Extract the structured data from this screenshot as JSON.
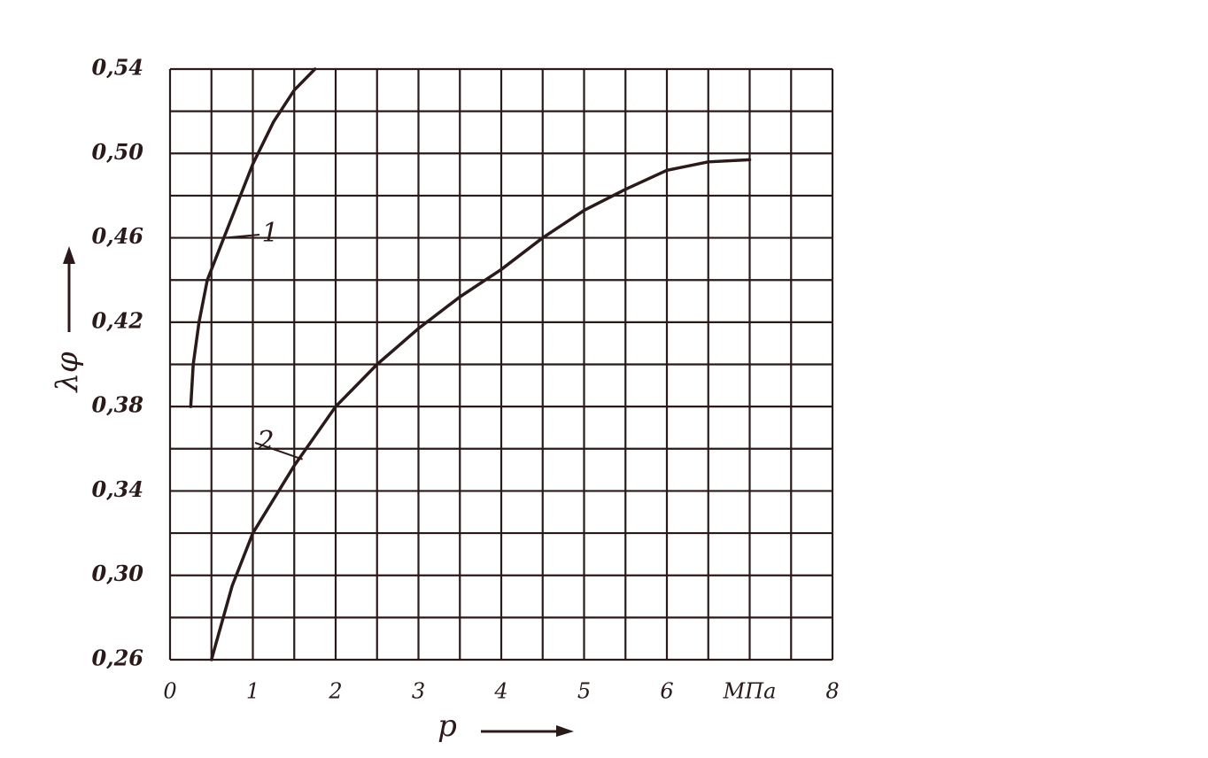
{
  "chart_data": {
    "type": "line",
    "x_label": "p",
    "y_label": "λφ",
    "xlim": [
      0,
      8
    ],
    "ylim": [
      0.26,
      0.54
    ],
    "xticks": [
      0,
      1,
      2,
      3,
      4,
      5,
      6,
      {
        "value": 7,
        "label": "МПа"
      },
      8
    ],
    "yticks": [
      {
        "value": 0.26,
        "label": "0,26"
      },
      {
        "value": 0.3,
        "label": "0,30"
      },
      {
        "value": 0.34,
        "label": "0,34"
      },
      {
        "value": 0.38,
        "label": "0,38"
      },
      {
        "value": 0.42,
        "label": "0,42"
      },
      {
        "value": 0.46,
        "label": "0,46"
      },
      {
        "value": 0.5,
        "label": "0,50"
      },
      {
        "value": 0.54,
        "label": "0,54"
      }
    ],
    "xgrid": [
      0,
      0.5,
      1,
      1.5,
      2,
      2.5,
      3,
      3.5,
      4,
      4.5,
      5,
      5.5,
      6,
      6.5,
      7,
      7.5,
      8
    ],
    "ygrid": [
      0.26,
      0.28,
      0.3,
      0.32,
      0.34,
      0.36,
      0.38,
      0.4,
      0.42,
      0.44,
      0.46,
      0.48,
      0.5,
      0.52,
      0.54
    ],
    "grid": true,
    "series": [
      {
        "name": "1",
        "color": "#2a1a1a",
        "x": [
          0.25,
          0.28,
          0.35,
          0.45,
          0.65,
          0.8,
          1.0,
          1.25,
          1.5,
          1.75
        ],
        "values": [
          0.38,
          0.4,
          0.42,
          0.44,
          0.46,
          0.475,
          0.495,
          0.515,
          0.53,
          0.54
        ]
      },
      {
        "name": "2",
        "color": "#2a1a1a",
        "x": [
          0.5,
          0.75,
          1,
          1.5,
          2,
          2.5,
          3,
          3.5,
          4,
          4.5,
          5,
          5.5,
          6,
          6.5,
          7
        ],
        "values": [
          0.26,
          0.295,
          0.32,
          0.352,
          0.38,
          0.4,
          0.417,
          0.432,
          0.445,
          0.46,
          0.473,
          0.483,
          0.492,
          0.496,
          0.497
        ]
      }
    ]
  }
}
